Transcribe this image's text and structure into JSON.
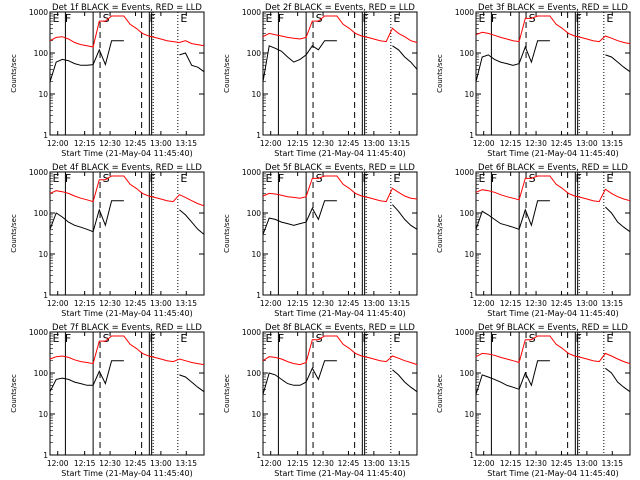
{
  "chart_data": [
    {
      "type": "line",
      "title": "Det 1f BLACK = Events, RED = LLD",
      "xlabel": "Start Time (21-May-04 11:45:40)",
      "ylabel": "Counts/sec",
      "yscale": "log",
      "ylim": [
        1,
        1000
      ],
      "yticks": [
        "1",
        "10",
        "100",
        "1000"
      ],
      "xticks": [
        "12:00",
        "12:15",
        "12:30",
        "12:45",
        "13:00",
        "13:15"
      ],
      "markers": [
        "E",
        "F",
        "S",
        "F",
        "E"
      ],
      "series": [
        {
          "color": "#000000",
          "values": [
            20,
            60,
            70,
            65,
            55,
            50,
            50,
            52,
            120,
            52,
            200,
            200,
            200,
            0,
            0,
            0,
            0,
            0,
            0,
            0,
            0,
            90,
            100,
            50,
            45,
            35
          ]
        },
        {
          "color": "#ff0000",
          "values": [
            200,
            240,
            250,
            220,
            180,
            160,
            150,
            140,
            600,
            600,
            800,
            800,
            800,
            500,
            400,
            300,
            260,
            240,
            220,
            200,
            190,
            180,
            200,
            170,
            160,
            150
          ]
        }
      ]
    },
    {
      "type": "line",
      "title": "Det 2f BLACK = Events, RED = LLD",
      "xlabel": "Start Time (21-May-04 11:45:40)",
      "ylabel": "Counts/sec",
      "yscale": "log",
      "ylim": [
        1,
        1000
      ],
      "yticks": [
        "1",
        "10",
        "100",
        "1000"
      ],
      "xticks": [
        "12:00",
        "12:15",
        "12:30",
        "12:45",
        "13:00",
        "13:15"
      ],
      "markers": [
        "E",
        "F",
        "S",
        "F",
        "E"
      ],
      "series": [
        {
          "color": "#000000",
          "values": [
            20,
            150,
            130,
            110,
            80,
            60,
            70,
            90,
            150,
            120,
            200,
            200,
            200,
            0,
            0,
            0,
            0,
            0,
            0,
            0,
            0,
            150,
            120,
            80,
            60,
            40
          ]
        },
        {
          "color": "#ff0000",
          "values": [
            250,
            300,
            280,
            260,
            240,
            230,
            220,
            240,
            600,
            600,
            800,
            800,
            800,
            500,
            400,
            300,
            260,
            240,
            220,
            200,
            190,
            400,
            300,
            250,
            200,
            180
          ]
        }
      ]
    },
    {
      "type": "line",
      "title": "Det 3f BLACK = Events, RED = LLD",
      "xlabel": "Start Time (21-May-04 11:45:40)",
      "ylabel": "Counts/sec",
      "yscale": "log",
      "ylim": [
        1,
        1000
      ],
      "yticks": [
        "1",
        "10",
        "100",
        "1000"
      ],
      "xticks": [
        "12:00",
        "12:15",
        "12:30",
        "12:45",
        "13:00",
        "13:15"
      ],
      "markers": [
        "E",
        "F",
        "S",
        "F",
        "E"
      ],
      "series": [
        {
          "color": "#000000",
          "values": [
            20,
            80,
            90,
            70,
            60,
            55,
            50,
            55,
            140,
            60,
            200,
            200,
            200,
            0,
            0,
            0,
            0,
            0,
            0,
            0,
            0,
            90,
            80,
            60,
            45,
            35
          ]
        },
        {
          "color": "#ff0000",
          "values": [
            280,
            320,
            300,
            270,
            240,
            220,
            200,
            190,
            700,
            700,
            800,
            800,
            800,
            500,
            400,
            300,
            260,
            240,
            220,
            200,
            190,
            260,
            230,
            200,
            180,
            170
          ]
        }
      ]
    },
    {
      "type": "line",
      "title": "Det 4f BLACK = Events, RED = LLD",
      "xlabel": "Start Time (21-May-04 11:45:40)",
      "ylabel": "Counts/sec",
      "yscale": "log",
      "ylim": [
        1,
        1000
      ],
      "yticks": [
        "1",
        "10",
        "100",
        "1000"
      ],
      "xticks": [
        "12:00",
        "12:15",
        "12:30",
        "12:45",
        "13:00",
        "13:15"
      ],
      "markers": [
        "E",
        "F",
        "S",
        "F",
        "E"
      ],
      "series": [
        {
          "color": "#000000",
          "values": [
            40,
            100,
            80,
            60,
            50,
            45,
            40,
            35,
            120,
            50,
            200,
            200,
            200,
            0,
            0,
            0,
            0,
            0,
            0,
            0,
            0,
            120,
            90,
            60,
            40,
            30
          ]
        },
        {
          "color": "#ff0000",
          "values": [
            300,
            350,
            330,
            300,
            260,
            230,
            210,
            190,
            650,
            650,
            800,
            800,
            800,
            500,
            400,
            300,
            260,
            240,
            220,
            200,
            190,
            280,
            240,
            200,
            170,
            150
          ]
        }
      ]
    },
    {
      "type": "line",
      "title": "Det 5f BLACK = Events, RED = LLD",
      "xlabel": "Start Time (21-May-04 11:45:40)",
      "ylabel": "Counts/sec",
      "yscale": "log",
      "ylim": [
        1,
        1000
      ],
      "yticks": [
        "1",
        "10",
        "100",
        "1000"
      ],
      "xticks": [
        "12:00",
        "12:15",
        "12:30",
        "12:45",
        "13:00",
        "13:15"
      ],
      "markers": [
        "E",
        "F",
        "S",
        "F",
        "E"
      ],
      "series": [
        {
          "color": "#000000",
          "values": [
            30,
            75,
            70,
            60,
            55,
            50,
            55,
            60,
            130,
            70,
            200,
            200,
            200,
            0,
            0,
            0,
            0,
            0,
            0,
            0,
            0,
            160,
            110,
            70,
            50,
            40
          ]
        },
        {
          "color": "#ff0000",
          "values": [
            260,
            300,
            290,
            270,
            250,
            240,
            230,
            250,
            700,
            700,
            800,
            800,
            800,
            500,
            400,
            300,
            260,
            240,
            220,
            200,
            190,
            400,
            320,
            260,
            230,
            220
          ]
        }
      ]
    },
    {
      "type": "line",
      "title": "Det 6f BLACK = Events, RED = LLD",
      "xlabel": "Start Time (21-May-04 11:45:40)",
      "ylabel": "Counts/sec",
      "yscale": "log",
      "ylim": [
        1,
        1000
      ],
      "yticks": [
        "1",
        "10",
        "100",
        "1000"
      ],
      "xticks": [
        "12:00",
        "12:15",
        "12:30",
        "12:45",
        "13:00",
        "13:15"
      ],
      "markers": [
        "E",
        "F",
        "S",
        "F",
        "E"
      ],
      "series": [
        {
          "color": "#000000",
          "values": [
            40,
            110,
            90,
            70,
            55,
            50,
            45,
            40,
            120,
            50,
            200,
            200,
            200,
            0,
            0,
            0,
            0,
            0,
            0,
            0,
            0,
            140,
            100,
            60,
            45,
            35
          ]
        },
        {
          "color": "#ff0000",
          "values": [
            320,
            370,
            350,
            320,
            280,
            250,
            230,
            210,
            700,
            700,
            800,
            800,
            800,
            500,
            400,
            300,
            260,
            240,
            220,
            200,
            190,
            380,
            300,
            250,
            220,
            200
          ]
        }
      ]
    },
    {
      "type": "line",
      "title": "Det 7f BLACK = Events, RED = LLD",
      "xlabel": "Start Time (21-May-04 11:45:40)",
      "ylabel": "Counts/sec",
      "yscale": "log",
      "ylim": [
        1,
        1000
      ],
      "yticks": [
        "1",
        "10",
        "100",
        "1000"
      ],
      "xticks": [
        "12:00",
        "12:15",
        "12:30",
        "12:45",
        "13:00",
        "13:15"
      ],
      "markers": [
        "E",
        "F",
        "S",
        "F",
        "E"
      ],
      "series": [
        {
          "color": "#000000",
          "values": [
            35,
            70,
            75,
            70,
            60,
            55,
            50,
            50,
            110,
            55,
            200,
            200,
            200,
            0,
            0,
            0,
            0,
            0,
            0,
            0,
            0,
            90,
            80,
            60,
            45,
            35
          ]
        },
        {
          "color": "#ff0000",
          "values": [
            220,
            250,
            260,
            240,
            210,
            190,
            180,
            170,
            600,
            600,
            800,
            800,
            800,
            500,
            400,
            300,
            260,
            240,
            220,
            200,
            190,
            220,
            200,
            180,
            170,
            160
          ]
        }
      ]
    },
    {
      "type": "line",
      "title": "Det 8f BLACK = Events, RED = LLD",
      "xlabel": "Start Time (21-May-04 11:45:40)",
      "ylabel": "Counts/sec",
      "yscale": "log",
      "ylim": [
        1,
        1000
      ],
      "yticks": [
        "1",
        "10",
        "100",
        "1000"
      ],
      "xticks": [
        "12:00",
        "12:15",
        "12:30",
        "12:45",
        "13:00",
        "13:15"
      ],
      "markers": [
        "E",
        "F",
        "S",
        "F",
        "E"
      ],
      "series": [
        {
          "color": "#000000",
          "values": [
            30,
            100,
            90,
            70,
            55,
            50,
            50,
            60,
            130,
            70,
            200,
            200,
            200,
            0,
            0,
            0,
            0,
            0,
            0,
            0,
            0,
            120,
            90,
            60,
            45,
            35
          ]
        },
        {
          "color": "#ff0000",
          "values": [
            200,
            250,
            240,
            220,
            190,
            170,
            160,
            180,
            650,
            650,
            800,
            800,
            800,
            500,
            400,
            300,
            260,
            240,
            220,
            200,
            190,
            260,
            230,
            200,
            180,
            160
          ]
        }
      ]
    },
    {
      "type": "line",
      "title": "Det 9f BLACK = Events, RED = LLD",
      "xlabel": "Start Time (21-May-04 11:45:40)",
      "ylabel": "Counts/sec",
      "yscale": "log",
      "ylim": [
        1,
        1000
      ],
      "yticks": [
        "1",
        "10",
        "100",
        "1000"
      ],
      "xticks": [
        "12:00",
        "12:15",
        "12:30",
        "12:45",
        "13:00",
        "13:15"
      ],
      "markers": [
        "E",
        "F",
        "S",
        "F",
        "E"
      ],
      "series": [
        {
          "color": "#000000",
          "values": [
            30,
            90,
            80,
            70,
            60,
            50,
            45,
            40,
            100,
            50,
            200,
            200,
            200,
            0,
            0,
            0,
            0,
            0,
            0,
            0,
            0,
            130,
            100,
            60,
            45,
            35
          ]
        },
        {
          "color": "#ff0000",
          "values": [
            250,
            300,
            290,
            270,
            240,
            220,
            200,
            180,
            650,
            650,
            800,
            800,
            800,
            500,
            400,
            300,
            260,
            240,
            220,
            200,
            190,
            300,
            260,
            220,
            190,
            170
          ]
        }
      ]
    }
  ]
}
